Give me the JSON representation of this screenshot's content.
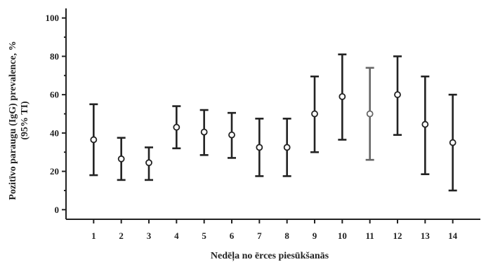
{
  "chart_data": {
    "type": "scatter",
    "title": "",
    "xlabel": "Nedēļa no ērces piesūkšanās",
    "ylabel_line1": "Pozitīvo paraugu (IgG) prevalence, %",
    "ylabel_line2": "(95% TI)",
    "xlim": [
      0,
      15
    ],
    "ylim": [
      -5,
      105
    ],
    "x_ticks": [
      "1",
      "2",
      "3",
      "4",
      "5",
      "6",
      "7",
      "8",
      "9",
      "10",
      "11",
      "12",
      "13",
      "14"
    ],
    "y_ticks": [
      "0",
      "20",
      "40",
      "60",
      "80",
      "100"
    ],
    "grid": false,
    "points": [
      {
        "x": 1,
        "y": 36.5,
        "lower": 18,
        "upper": 55
      },
      {
        "x": 2,
        "y": 26.5,
        "lower": 15.5,
        "upper": 37.5
      },
      {
        "x": 3,
        "y": 24.5,
        "lower": 15.5,
        "upper": 32.5
      },
      {
        "x": 4,
        "y": 43,
        "lower": 32,
        "upper": 54
      },
      {
        "x": 5,
        "y": 40.5,
        "lower": 28.5,
        "upper": 52
      },
      {
        "x": 6,
        "y": 39,
        "lower": 27,
        "upper": 50.5
      },
      {
        "x": 7,
        "y": 32.5,
        "lower": 17.5,
        "upper": 47.5
      },
      {
        "x": 8,
        "y": 32.5,
        "lower": 17.5,
        "upper": 47.5
      },
      {
        "x": 9,
        "y": 50,
        "lower": 30,
        "upper": 69.5
      },
      {
        "x": 10,
        "y": 59,
        "lower": 36.5,
        "upper": 81
      },
      {
        "x": 11,
        "y": 50,
        "lower": 26,
        "upper": 74
      },
      {
        "x": 12,
        "y": 60,
        "lower": 39,
        "upper": 80
      },
      {
        "x": 13,
        "y": 44.5,
        "lower": 18.5,
        "upper": 69.5
      },
      {
        "x": 14,
        "y": 35,
        "lower": 10,
        "upper": 60
      }
    ],
    "colors": {
      "axis": "#222222",
      "bar": "#222222",
      "bar_light": "#666666"
    }
  }
}
